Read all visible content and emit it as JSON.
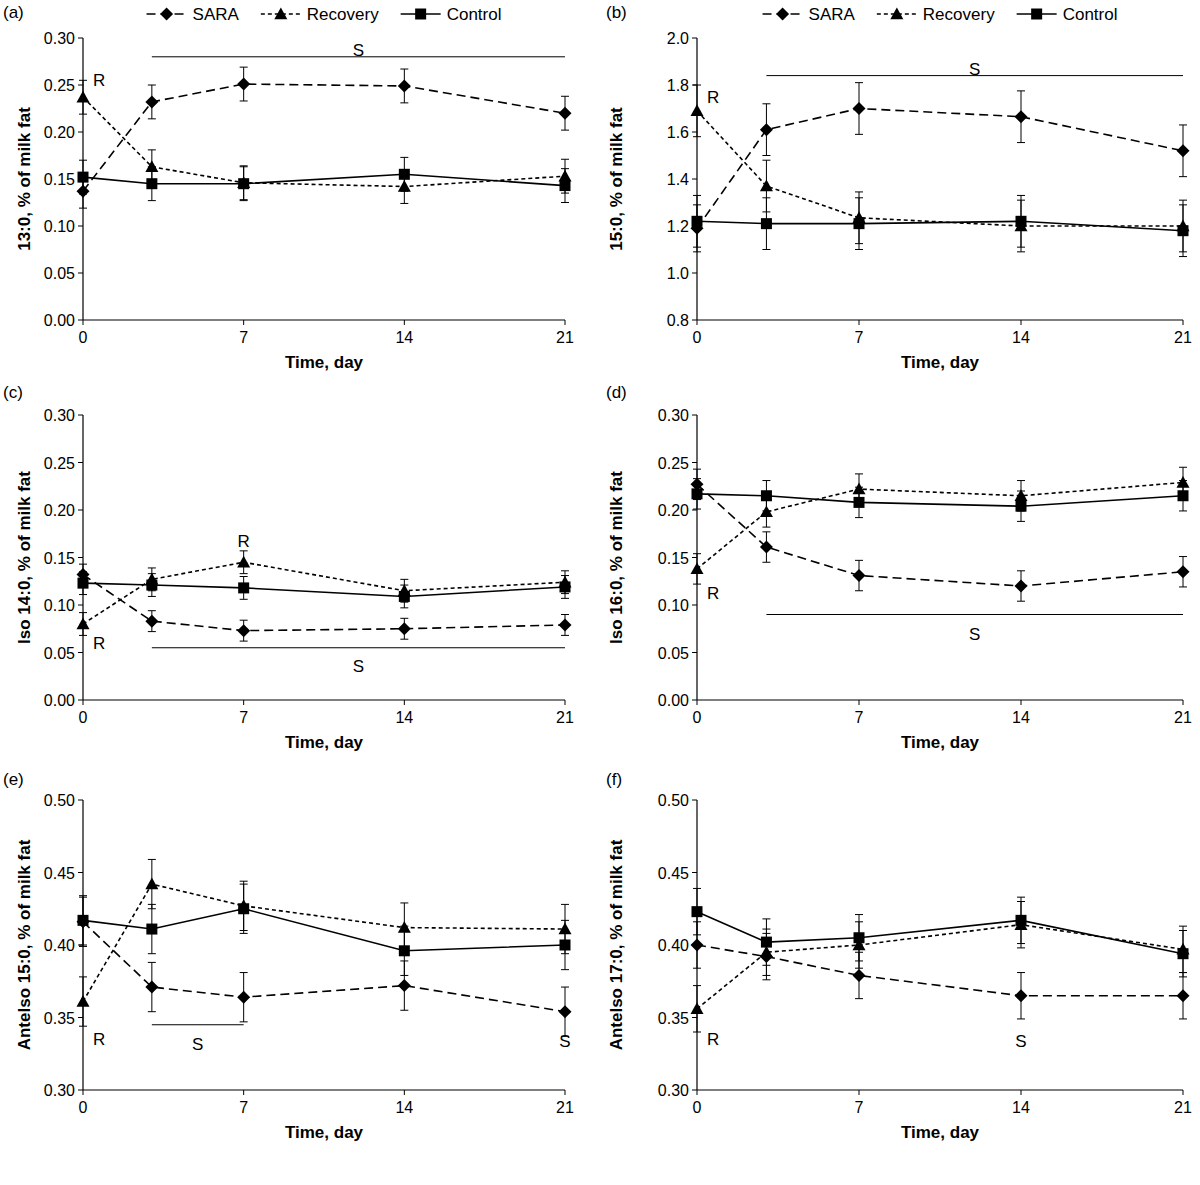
{
  "chart_data": [
    {
      "type": "line",
      "title": "(a)",
      "ylabel": "13:0, % of milk fat",
      "xlabel": "Time, day",
      "legend": "top",
      "x": [
        0,
        3,
        7,
        14,
        21
      ],
      "xlim": [
        0,
        21
      ],
      "xticks": [
        0,
        7,
        14,
        21
      ],
      "ylim": [
        0,
        0.3
      ],
      "yticks": [
        {
          "value": 0,
          "label": "0.00"
        },
        {
          "value": 0.05,
          "label": "0.05"
        },
        {
          "value": 0.1,
          "label": "0.10"
        },
        {
          "value": 0.15,
          "label": "0.15"
        },
        {
          "value": 0.2,
          "label": "0.20"
        },
        {
          "value": 0.25,
          "label": "0.25"
        },
        {
          "value": 0.3,
          "label": "0.30"
        }
      ],
      "series": [
        {
          "name": "SARA",
          "color": "#000000",
          "marker": "diamond",
          "line_style": "dashed",
          "values": [
            0.137,
            0.232,
            0.251,
            0.249,
            0.22
          ],
          "errors": [
            0.018,
            0.018,
            0.018,
            0.018,
            0.018
          ]
        },
        {
          "name": "Recovery",
          "color": "#000000",
          "marker": "triangle",
          "line_style": "dotted",
          "values": [
            0.237,
            0.163,
            0.146,
            0.142,
            0.153
          ],
          "errors": [
            0.018,
            0.018,
            0.018,
            0.018,
            0.018
          ]
        },
        {
          "name": "Control",
          "color": "#000000",
          "marker": "square",
          "line_style": "solid",
          "values": [
            0.152,
            0.145,
            0.145,
            0.155,
            0.143
          ],
          "errors": [
            0.018,
            0.018,
            0.018,
            0.018,
            0.018
          ]
        }
      ],
      "annotations": [
        {
          "text": "R",
          "x": 0.7,
          "y": 0.255
        },
        {
          "text": "S",
          "x": 12,
          "y": 0.287,
          "span": [
            3,
            21
          ],
          "line_y": 0.28
        }
      ]
    },
    {
      "type": "line",
      "title": "(b)",
      "ylabel": "15:0, % of milk fat",
      "xlabel": "Time, day",
      "legend": "top",
      "x": [
        0,
        3,
        7,
        14,
        21
      ],
      "xlim": [
        0,
        21
      ],
      "xticks": [
        0,
        7,
        14,
        21
      ],
      "ylim": [
        0.8,
        2
      ],
      "yticks": [
        0.8,
        {
          "value": 1,
          "label": "1.0"
        },
        1.2,
        1.4,
        1.6,
        1.8,
        {
          "value": 2,
          "label": "2.0"
        }
      ],
      "series": [
        {
          "name": "SARA",
          "color": "#000000",
          "marker": "diamond",
          "line_style": "dashed",
          "values": [
            1.19,
            1.61,
            1.7,
            1.665,
            1.52
          ],
          "errors": [
            0.1,
            0.11,
            0.11,
            0.11,
            0.11
          ]
        },
        {
          "name": "Recovery",
          "color": "#000000",
          "marker": "triangle",
          "line_style": "dotted",
          "values": [
            1.69,
            1.37,
            1.235,
            1.2,
            1.2
          ],
          "errors": [
            0.11,
            0.11,
            0.11,
            0.11,
            0.11
          ]
        },
        {
          "name": "Control",
          "color": "#000000",
          "marker": "square",
          "line_style": "solid",
          "values": [
            1.22,
            1.21,
            1.21,
            1.22,
            1.18
          ],
          "errors": [
            0.11,
            0.11,
            0.11,
            0.11,
            0.11
          ]
        }
      ],
      "annotations": [
        {
          "text": "R",
          "x": 0.7,
          "y": 1.75
        },
        {
          "text": "S",
          "x": 12,
          "y": 1.87,
          "span": [
            3,
            21
          ],
          "line_y": 1.84
        }
      ]
    },
    {
      "type": "line",
      "title": "(c)",
      "ylabel": "Iso 14:0, % of milk fat",
      "xlabel": "Time, day",
      "x": [
        0,
        3,
        7,
        14,
        21
      ],
      "xlim": [
        0,
        21
      ],
      "xticks": [
        0,
        7,
        14,
        21
      ],
      "ylim": [
        0,
        0.3
      ],
      "yticks": [
        {
          "value": 0,
          "label": "0.00"
        },
        {
          "value": 0.05,
          "label": "0.05"
        },
        {
          "value": 0.1,
          "label": "0.10"
        },
        {
          "value": 0.15,
          "label": "0.15"
        },
        {
          "value": 0.2,
          "label": "0.20"
        },
        {
          "value": 0.25,
          "label": "0.25"
        },
        {
          "value": 0.3,
          "label": "0.30"
        }
      ],
      "series": [
        {
          "name": "SARA",
          "color": "#000000",
          "marker": "diamond",
          "line_style": "dashed",
          "values": [
            0.132,
            0.083,
            0.073,
            0.075,
            0.079
          ],
          "errors": [
            0.011,
            0.011,
            0.011,
            0.011,
            0.011
          ]
        },
        {
          "name": "Recovery",
          "color": "#000000",
          "marker": "triangle",
          "line_style": "dotted",
          "values": [
            0.08,
            0.127,
            0.145,
            0.115,
            0.124
          ],
          "errors": [
            0.012,
            0.012,
            0.012,
            0.012,
            0.012
          ]
        },
        {
          "name": "Control",
          "color": "#000000",
          "marker": "square",
          "line_style": "solid",
          "values": [
            0.123,
            0.121,
            0.118,
            0.109,
            0.119
          ],
          "errors": [
            0.012,
            0.012,
            0.012,
            0.012,
            0.012
          ]
        }
      ],
      "annotations": [
        {
          "text": "R",
          "x": 0.7,
          "y": 0.06
        },
        {
          "text": "R",
          "x": 7,
          "y": 0.167
        },
        {
          "text": "S",
          "x": 12,
          "y": 0.036,
          "span": [
            3,
            21
          ],
          "line_y": 0.055
        }
      ]
    },
    {
      "type": "line",
      "title": "(d)",
      "ylabel": "Iso 16:0, % of milk fat",
      "xlabel": "Time, day",
      "x": [
        0,
        3,
        7,
        14,
        21
      ],
      "xlim": [
        0,
        21
      ],
      "xticks": [
        0,
        7,
        14,
        21
      ],
      "ylim": [
        0,
        0.3
      ],
      "yticks": [
        {
          "value": 0,
          "label": "0.00"
        },
        {
          "value": 0.05,
          "label": "0.05"
        },
        {
          "value": 0.1,
          "label": "0.10"
        },
        {
          "value": 0.15,
          "label": "0.15"
        },
        {
          "value": 0.2,
          "label": "0.20"
        },
        {
          "value": 0.25,
          "label": "0.25"
        },
        {
          "value": 0.3,
          "label": "0.30"
        }
      ],
      "series": [
        {
          "name": "SARA",
          "color": "#000000",
          "marker": "diamond",
          "line_style": "dashed",
          "values": [
            0.227,
            0.161,
            0.131,
            0.12,
            0.135
          ],
          "errors": [
            0.016,
            0.016,
            0.016,
            0.016,
            0.016
          ]
        },
        {
          "name": "Recovery",
          "color": "#000000",
          "marker": "triangle",
          "line_style": "dotted",
          "values": [
            0.138,
            0.198,
            0.222,
            0.215,
            0.229
          ],
          "errors": [
            0.016,
            0.016,
            0.016,
            0.016,
            0.016
          ]
        },
        {
          "name": "Control",
          "color": "#000000",
          "marker": "square",
          "line_style": "solid",
          "values": [
            0.217,
            0.215,
            0.208,
            0.204,
            0.215
          ],
          "errors": [
            0.016,
            0.016,
            0.016,
            0.016,
            0.016
          ]
        }
      ],
      "annotations": [
        {
          "text": "R",
          "x": 0.7,
          "y": 0.113
        },
        {
          "text": "S",
          "x": 12,
          "y": 0.07,
          "span": [
            3,
            21
          ],
          "line_y": 0.09
        }
      ]
    },
    {
      "type": "line",
      "title": "(e)",
      "ylabel": "AnteIso 15:0, % of milk fat",
      "xlabel": "Time, day",
      "x": [
        0,
        3,
        7,
        14,
        21
      ],
      "xlim": [
        0,
        21
      ],
      "xticks": [
        0,
        7,
        14,
        21
      ],
      "ylim": [
        0.3,
        0.5
      ],
      "yticks": [
        {
          "value": 0.3,
          "label": "0.30"
        },
        0.35,
        {
          "value": 0.4,
          "label": "0.40"
        },
        0.45,
        {
          "value": 0.5,
          "label": "0.50"
        }
      ],
      "series": [
        {
          "name": "SARA",
          "color": "#000000",
          "marker": "diamond",
          "line_style": "dashed",
          "values": [
            0.416,
            0.371,
            0.364,
            0.372,
            0.354
          ],
          "errors": [
            0.017,
            0.017,
            0.017,
            0.017,
            0.017
          ]
        },
        {
          "name": "Recovery",
          "color": "#000000",
          "marker": "triangle",
          "line_style": "dotted",
          "values": [
            0.361,
            0.442,
            0.427,
            0.412,
            0.411
          ],
          "errors": [
            0.017,
            0.017,
            0.017,
            0.017,
            0.017
          ]
        },
        {
          "name": "Control",
          "color": "#000000",
          "marker": "square",
          "line_style": "solid",
          "values": [
            0.417,
            0.411,
            0.425,
            0.396,
            0.4
          ],
          "errors": [
            0.017,
            0.017,
            0.017,
            0.017,
            0.017
          ]
        }
      ],
      "annotations": [
        {
          "text": "R",
          "x": 0.7,
          "y": 0.335
        },
        {
          "text": "S",
          "x": 5,
          "y": 0.332,
          "span": [
            3,
            7
          ],
          "line_y": 0.345
        },
        {
          "text": "S",
          "x": 21,
          "y": 0.334
        }
      ]
    },
    {
      "type": "line",
      "title": "(f)",
      "ylabel": "AnteIso 17:0, % of milk fat",
      "xlabel": "Time, day",
      "x": [
        0,
        3,
        7,
        14,
        21
      ],
      "xlim": [
        0,
        21
      ],
      "xticks": [
        0,
        7,
        14,
        21
      ],
      "ylim": [
        0.3,
        0.5
      ],
      "yticks": [
        {
          "value": 0.3,
          "label": "0.30"
        },
        0.35,
        {
          "value": 0.4,
          "label": "0.40"
        },
        0.45,
        {
          "value": 0.5,
          "label": "0.50"
        }
      ],
      "series": [
        {
          "name": "SARA",
          "color": "#000000",
          "marker": "diamond",
          "line_style": "dashed",
          "values": [
            0.4,
            0.392,
            0.379,
            0.365,
            0.365
          ],
          "errors": [
            0.016,
            0.016,
            0.016,
            0.016,
            0.016
          ]
        },
        {
          "name": "Recovery",
          "color": "#000000",
          "marker": "triangle",
          "line_style": "dotted",
          "values": [
            0.356,
            0.395,
            0.4,
            0.414,
            0.397
          ],
          "errors": [
            0.016,
            0.016,
            0.016,
            0.016,
            0.016
          ]
        },
        {
          "name": "Control",
          "color": "#000000",
          "marker": "square",
          "line_style": "solid",
          "values": [
            0.423,
            0.402,
            0.405,
            0.417,
            0.394
          ],
          "errors": [
            0.016,
            0.016,
            0.016,
            0.016,
            0.016
          ]
        }
      ],
      "annotations": [
        {
          "text": "R",
          "x": 0.7,
          "y": 0.335
        },
        {
          "text": "S",
          "x": 14,
          "y": 0.334
        }
      ]
    }
  ]
}
